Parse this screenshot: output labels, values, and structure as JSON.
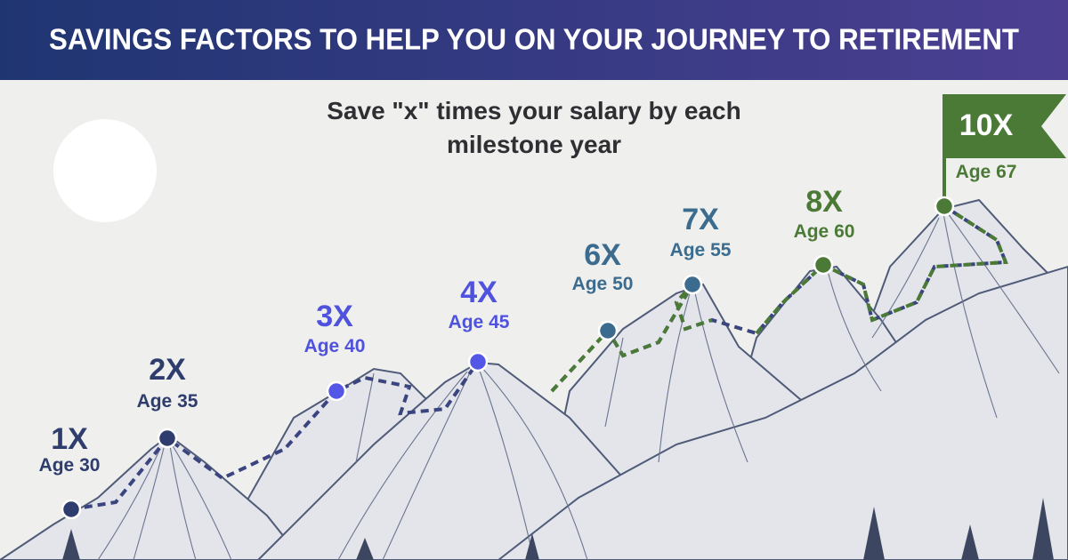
{
  "header": {
    "title": "SAVINGS FACTORS TO HELP YOU ON YOUR JOURNEY TO RETIREMENT"
  },
  "subtitle": "Save \"x\" times your salary by each milestone year",
  "milestones": [
    {
      "factor": "1X",
      "age": "Age 30"
    },
    {
      "factor": "2X",
      "age": "Age 35"
    },
    {
      "factor": "3X",
      "age": "Age 40"
    },
    {
      "factor": "4X",
      "age": "Age 45"
    },
    {
      "factor": "6X",
      "age": "Age 50"
    },
    {
      "factor": "7X",
      "age": "Age 55"
    },
    {
      "factor": "8X",
      "age": "Age 60"
    },
    {
      "factor": "10X",
      "age": "Age 67"
    }
  ]
}
